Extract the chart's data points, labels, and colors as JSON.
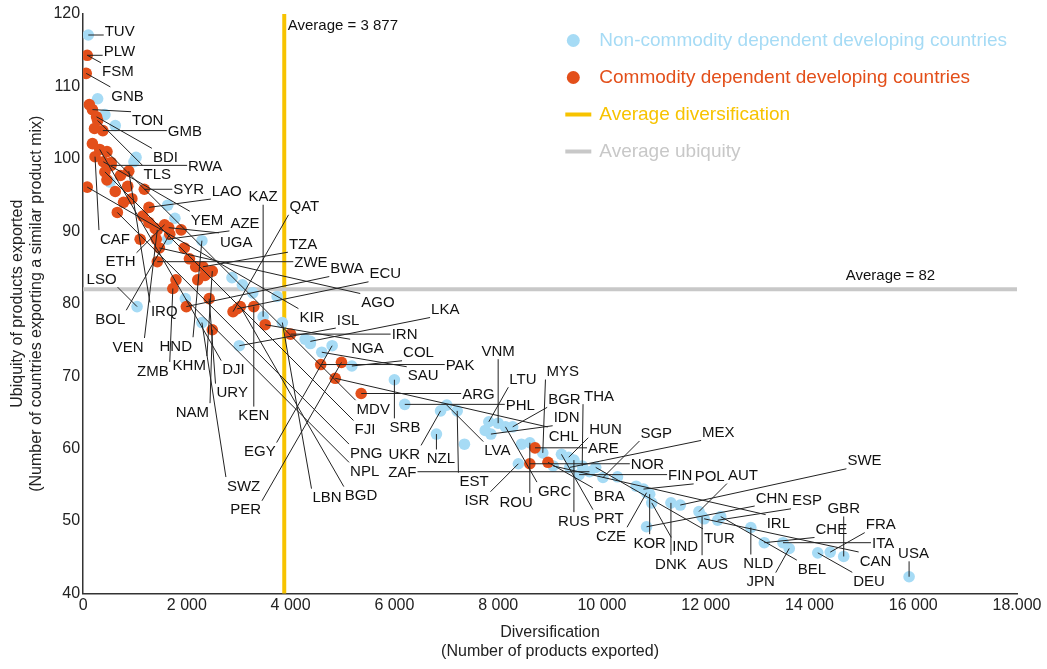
{
  "chart_data": {
    "type": "scatter",
    "xlabel": "Diversification\n(Number of products exported)",
    "ylabel": "Ubiquity of products exported\n(Number of countries exporting a similar product mix)",
    "xlim": [
      0,
      18000
    ],
    "ylim": [
      40,
      120
    ],
    "xticks": [
      0,
      {
        "value": 2000,
        "label": "2 000"
      },
      {
        "value": 4000,
        "label": "4 000"
      },
      {
        "value": 6000,
        "label": "6 000"
      },
      {
        "value": 8000,
        "label": "8 000"
      },
      {
        "value": 10000,
        "label": "10 000"
      },
      {
        "value": 12000,
        "label": "12 000"
      },
      {
        "value": 14000,
        "label": "14 000"
      },
      {
        "value": 16000,
        "label": "16 000"
      },
      {
        "value": 18000,
        "label": "18.000"
      }
    ],
    "yticks": [
      40,
      50,
      60,
      70,
      80,
      90,
      100,
      110,
      120
    ],
    "grid": false,
    "legend": "top right",
    "marker": "circle",
    "series": [
      {
        "name": "Non-commodity dependent developing countries",
        "color": "#a6dbf5",
        "x": [
          100,
          2290,
          1630,
          1040,
          1970,
          2290,
          3010,
          3470,
          3840,
          4380,
          4800,
          4600,
          5180,
          6000,
          6200,
          6810,
          6890,
          7010,
          7210,
          7820,
          7860,
          8000,
          8140,
          8280,
          8610,
          8860,
          8390,
          9060,
          9220,
          9360,
          9460,
          9380,
          9620,
          9560,
          9760,
          9880,
          10020,
          10800,
          10860,
          10920,
          10960,
          10860,
          11330,
          11510,
          11870,
          11930,
          11970,
          12230,
          12290,
          12870,
          13130,
          13490,
          13610,
          14160,
          14400,
          14660,
          15920,
          280,
          420,
          620,
          1020,
          980,
          520,
          1630,
          1770,
          2870,
          3070,
          3270,
          3740,
          4280,
          4380,
          7350,
          7750,
          8450,
          10300,
          10660
        ],
        "values": [
          117.1,
          88.7,
          88.9,
          79.6,
          80.7,
          77.4,
          74.2,
          78.2,
          77.4,
          74.8,
          74.2,
          73.3,
          71.4,
          69.5,
          66.1,
          62.0,
          65.2,
          66.0,
          65.2,
          63.7,
          62.0,
          63.5,
          63.0,
          63.0,
          60.8,
          59.4,
          57.9,
          57.6,
          59.2,
          58.8,
          58.4,
          57.4,
          57.6,
          56.4,
          56.8,
          57.4,
          56.0,
          54.4,
          53.9,
          53.7,
          52.5,
          49.2,
          52.5,
          52.2,
          51.3,
          50.6,
          50.3,
          50.1,
          50.6,
          49.1,
          47.0,
          47.0,
          46.2,
          45.6,
          45.7,
          45.1,
          42.3,
          108.3,
          106.1,
          104.6,
          100.2,
          99.6,
          96.8,
          93.6,
          91.8,
          83.6,
          82.6,
          81.5,
          81.0,
          75.1,
          74.5,
          60.6,
          62.5,
          60.6,
          56.1,
          54.8
        ]
      },
      {
        "name": "Commodity dependent developing countries",
        "color": "#e34f1a",
        "x": [
          80,
          60,
          180,
          260,
          280,
          380,
          230,
          320,
          460,
          390,
          540,
          420,
          880,
          1180,
          1270,
          1570,
          1650,
          1670,
          2310,
          2490,
          2970,
          3030,
          3290,
          3510,
          4000,
          80,
          660,
          1430,
          1470,
          1430,
          1730,
          1990,
          2430,
          2490,
          2890,
          4580,
          4980,
          4860,
          5360,
          8710,
          8610,
          8960,
          120,
          220,
          180,
          540,
          460,
          720,
          620,
          860,
          940,
          780,
          1150,
          1270,
          1390,
          1100,
          1410,
          1890,
          1950,
          2050,
          2170,
          2350,
          2210,
          1790
        ],
        "values": [
          114.3,
          111.8,
          106.8,
          105.8,
          105.3,
          103.9,
          100.3,
          101.3,
          101.0,
          99.6,
          99.1,
          98.2,
          98.3,
          95.8,
          93.3,
          90.9,
          90.5,
          89.6,
          85.1,
          84.5,
          79.3,
          79.6,
          79.6,
          77.1,
          75.8,
          96.1,
          92.6,
          90.2,
          87.7,
          85.8,
          82.1,
          79.6,
          80.7,
          76.4,
          78.9,
          71.6,
          71.9,
          69.7,
          67.6,
          60.1,
          57.9,
          58.1,
          107.5,
          104.2,
          102.1,
          99.5,
          97.1,
          97.7,
          95.5,
          96.2,
          94.5,
          94.0,
          92.1,
          91.2,
          90.4,
          88.9,
          88.9,
          90.2,
          87.7,
          86.2,
          85.1,
          83.9,
          83.3,
          83.3
        ]
      }
    ],
    "ref_lines": [
      {
        "axis": "x",
        "value": 3877,
        "label": "Average diversification",
        "color": "#f7c300"
      },
      {
        "axis": "y",
        "value": 82,
        "label": "Average ubiquity",
        "color": "#c8c8c8"
      }
    ],
    "annotations": [
      {
        "text": "Average = 3 877",
        "x": 3877,
        "y": 116.6
      },
      {
        "text": "Average = 82",
        "x": 15560,
        "y": 82
      },
      {
        "text": "TUV",
        "x": 100,
        "y": 117.1
      },
      {
        "text": "PLW",
        "x": 80,
        "y": 114.3
      },
      {
        "text": "FSM",
        "x": 80,
        "y": 114.3
      },
      {
        "text": "GNB",
        "x": 60,
        "y": 111.8
      },
      {
        "text": "TON",
        "x": 180,
        "y": 106.8
      },
      {
        "text": "BDI",
        "x": 260,
        "y": 105.8
      },
      {
        "text": "TLS",
        "x": 280,
        "y": 105.3
      },
      {
        "text": "GMB",
        "x": 380,
        "y": 103.9
      },
      {
        "text": "CAF",
        "x": 230,
        "y": 100.3
      },
      {
        "text": "DJI",
        "x": 320,
        "y": 101.3
      },
      {
        "text": "MDV",
        "x": 460,
        "y": 101.0
      },
      {
        "text": "YEM",
        "x": 390,
        "y": 99.6
      },
      {
        "text": "RWA",
        "x": 540,
        "y": 99.1
      },
      {
        "text": "FJI",
        "x": 420,
        "y": 98.2
      },
      {
        "text": "IRQ",
        "x": 880,
        "y": 98.3
      },
      {
        "text": "SYR",
        "x": 1180,
        "y": 95.8
      },
      {
        "text": "LAO",
        "x": 1270,
        "y": 93.3
      },
      {
        "text": "ETH",
        "x": 1570,
        "y": 90.9
      },
      {
        "text": "UGA",
        "x": 1650,
        "y": 90.5
      },
      {
        "text": "BOL",
        "x": 1670,
        "y": 89.6
      },
      {
        "text": "KIR",
        "x": 80,
        "y": 96.1
      },
      {
        "text": "PNG",
        "x": 660,
        "y": 92.6
      },
      {
        "text": "VEN",
        "x": 1430,
        "y": 90.2
      },
      {
        "text": "AGO",
        "x": 1470,
        "y": 87.7
      },
      {
        "text": "AZE",
        "x": 1630,
        "y": 88.9
      },
      {
        "text": "ZWE",
        "x": 1430,
        "y": 85.8
      },
      {
        "text": "HND",
        "x": 2290,
        "y": 88.7
      },
      {
        "text": "TZA",
        "x": 2310,
        "y": 85.1
      },
      {
        "text": "KHM",
        "x": 2490,
        "y": 84.5
      },
      {
        "text": "LSO",
        "x": 1040,
        "y": 79.6
      },
      {
        "text": "ZMB",
        "x": 1730,
        "y": 82.1
      },
      {
        "text": "NPL",
        "x": 1970,
        "y": 80.7
      },
      {
        "text": "BWA",
        "x": 1990,
        "y": 79.6
      },
      {
        "text": "URY",
        "x": 2430,
        "y": 80.7
      },
      {
        "text": "SWZ",
        "x": 2290,
        "y": 77.4
      },
      {
        "text": "NAM",
        "x": 2490,
        "y": 76.4
      },
      {
        "text": "QAT",
        "x": 2890,
        "y": 78.9
      },
      {
        "text": "ECU",
        "x": 2970,
        "y": 79.3
      },
      {
        "text": "BGD",
        "x": 3030,
        "y": 79.6
      },
      {
        "text": "KEN",
        "x": 3290,
        "y": 79.6
      },
      {
        "text": "ISL",
        "x": 3010,
        "y": 74.2
      },
      {
        "text": "KAZ",
        "x": 3470,
        "y": 78.2
      },
      {
        "text": "NGA",
        "x": 3510,
        "y": 77.1
      },
      {
        "text": "LBN",
        "x": 3840,
        "y": 77.4
      },
      {
        "text": "IRN",
        "x": 4000,
        "y": 75.8
      },
      {
        "text": "LKA",
        "x": 4380,
        "y": 74.8
      },
      {
        "text": "EGY",
        "x": 4800,
        "y": 74.2
      },
      {
        "text": "SAU",
        "x": 4600,
        "y": 73.3
      },
      {
        "text": "PAK",
        "x": 4580,
        "y": 71.6
      },
      {
        "text": "PER",
        "x": 4980,
        "y": 71.9
      },
      {
        "text": "COL",
        "x": 5180,
        "y": 71.4
      },
      {
        "text": "CHL",
        "x": 4860,
        "y": 69.7
      },
      {
        "text": "ARG",
        "x": 5360,
        "y": 67.6
      },
      {
        "text": "SRB",
        "x": 6000,
        "y": 69.5
      },
      {
        "text": "PHL",
        "x": 6200,
        "y": 66.1
      },
      {
        "text": "NZL",
        "x": 6810,
        "y": 62.0
      },
      {
        "text": "UKR",
        "x": 6890,
        "y": 65.2
      },
      {
        "text": "LVA",
        "x": 7010,
        "y": 66.0
      },
      {
        "text": "EST",
        "x": 7210,
        "y": 65.2
      },
      {
        "text": "LTU",
        "x": 7820,
        "y": 63.7
      },
      {
        "text": "IDN",
        "x": 7860,
        "y": 62.0
      },
      {
        "text": "VNM",
        "x": 8000,
        "y": 63.5
      },
      {
        "text": "GRC",
        "x": 8140,
        "y": 63.0
      },
      {
        "text": "BGR",
        "x": 8280,
        "y": 63.0
      },
      {
        "text": "ROU",
        "x": 8610,
        "y": 60.8
      },
      {
        "text": "ARE",
        "x": 8710,
        "y": 60.1
      },
      {
        "text": "MYS",
        "x": 8860,
        "y": 59.4
      },
      {
        "text": "ISR",
        "x": 8390,
        "y": 57.9
      },
      {
        "text": "NOR",
        "x": 8610,
        "y": 57.9
      },
      {
        "text": "BRA",
        "x": 8960,
        "y": 58.1
      },
      {
        "text": "IRL",
        "x": 9060,
        "y": 57.6
      },
      {
        "text": "PRT",
        "x": 9220,
        "y": 59.2
      },
      {
        "text": "HUN",
        "x": 9360,
        "y": 58.8
      },
      {
        "text": "RUS",
        "x": 9460,
        "y": 58.4
      },
      {
        "text": "MEX",
        "x": 9380,
        "y": 57.4
      },
      {
        "text": "THA",
        "x": 9620,
        "y": 57.6
      },
      {
        "text": "FIN",
        "x": 9560,
        "y": 56.4
      },
      {
        "text": "ZAF",
        "x": 9760,
        "y": 56.8
      },
      {
        "text": "TUR",
        "x": 9880,
        "y": 57.4
      },
      {
        "text": "SGP",
        "x": 10020,
        "y": 56.0
      },
      {
        "text": "POL",
        "x": 10800,
        "y": 54.4
      },
      {
        "text": "CZE",
        "x": 10860,
        "y": 53.9
      },
      {
        "text": "KOR",
        "x": 10920,
        "y": 53.7
      },
      {
        "text": "IND",
        "x": 10960,
        "y": 52.5
      },
      {
        "text": "CHN",
        "x": 10860,
        "y": 49.2
      },
      {
        "text": "DNK",
        "x": 11330,
        "y": 52.5
      },
      {
        "text": "SWE",
        "x": 11510,
        "y": 52.2
      },
      {
        "text": "AUT",
        "x": 11870,
        "y": 51.3
      },
      {
        "text": "AUS",
        "x": 11930,
        "y": 50.6
      },
      {
        "text": "CAN",
        "x": 11970,
        "y": 50.3
      },
      {
        "text": "ESP",
        "x": 12230,
        "y": 50.1
      },
      {
        "text": "BEL",
        "x": 12290,
        "y": 50.6
      },
      {
        "text": "NLD",
        "x": 12870,
        "y": 49.1
      },
      {
        "text": "CHE",
        "x": 13130,
        "y": 47.0
      },
      {
        "text": "ITA",
        "x": 13490,
        "y": 47.0
      },
      {
        "text": "JPN",
        "x": 13610,
        "y": 46.2
      },
      {
        "text": "DEU",
        "x": 14160,
        "y": 45.6
      },
      {
        "text": "FRA",
        "x": 14400,
        "y": 45.7
      },
      {
        "text": "GBR",
        "x": 14660,
        "y": 45.1
      },
      {
        "text": "USA",
        "x": 15920,
        "y": 42.3
      }
    ]
  }
}
